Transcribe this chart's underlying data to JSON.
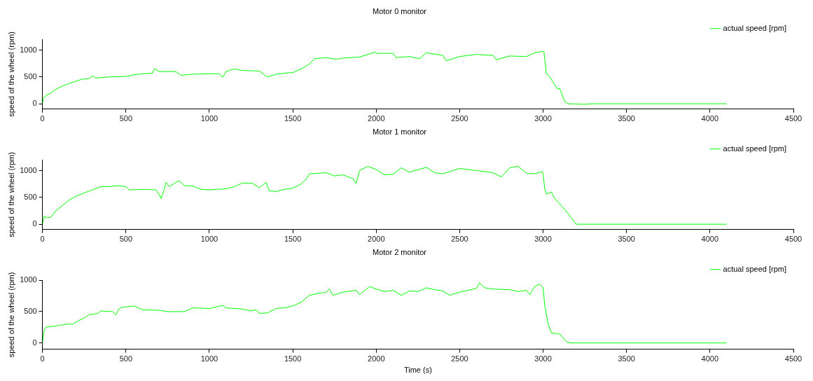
{
  "chart_data": [
    {
      "type": "line",
      "title": "Motor 0 monitor",
      "ylabel": "speed of the wheel (rpm)",
      "xlim": [
        0,
        4500
      ],
      "xticks": [
        0,
        500,
        1000,
        1500,
        2000,
        2500,
        3000,
        3500,
        4000,
        4500
      ],
      "ylim": [
        -100,
        1200
      ],
      "yticks": [
        0,
        500,
        1000
      ],
      "grid": false,
      "legend": "top right",
      "series": [
        {
          "name": "actual speed [rpm]",
          "color": "#00ff00",
          "x": [
            0,
            5,
            20,
            50,
            80,
            120,
            160,
            200,
            240,
            280,
            300,
            320,
            400,
            500,
            550,
            600,
            660,
            670,
            700,
            800,
            830,
            900,
            1000,
            1060,
            1080,
            1100,
            1150,
            1200,
            1300,
            1330,
            1350,
            1400,
            1480,
            1500,
            1550,
            1600,
            1630,
            1700,
            1760,
            1800,
            1900,
            1990,
            2000,
            2100,
            2120,
            2200,
            2260,
            2300,
            2400,
            2420,
            2500,
            2600,
            2700,
            2720,
            2800,
            2900,
            2950,
            3000,
            3005,
            3020,
            3040,
            3085,
            3100,
            3130,
            3150,
            3250,
            3300,
            4100
          ],
          "values": [
            0,
            100,
            150,
            200,
            270,
            330,
            380,
            420,
            460,
            470,
            520,
            480,
            500,
            510,
            540,
            560,
            570,
            650,
            600,
            600,
            530,
            550,
            560,
            560,
            490,
            600,
            650,
            620,
            610,
            540,
            500,
            550,
            580,
            580,
            650,
            740,
            840,
            860,
            830,
            850,
            870,
            960,
            940,
            940,
            860,
            880,
            840,
            950,
            900,
            800,
            880,
            920,
            900,
            820,
            890,
            880,
            950,
            980,
            970,
            560,
            500,
            280,
            280,
            40,
            0,
            -10,
            0,
            0
          ]
        }
      ]
    },
    {
      "type": "line",
      "title": "Motor 1 monitor",
      "ylabel": "speed of the wheel (rpm)",
      "xlim": [
        0,
        4500
      ],
      "xticks": [
        0,
        500,
        1000,
        1500,
        2000,
        2500,
        3000,
        3500,
        4000,
        4500
      ],
      "ylim": [
        -100,
        1200
      ],
      "yticks": [
        0,
        500,
        1000
      ],
      "grid": false,
      "legend": "top right",
      "series": [
        {
          "name": "actual speed [rpm]",
          "color": "#00ff00",
          "x": [
            0,
            10,
            30,
            50,
            80,
            120,
            160,
            200,
            240,
            280,
            350,
            400,
            450,
            500,
            520,
            600,
            680,
            700,
            710,
            730,
            740,
            760,
            800,
            820,
            850,
            900,
            950,
            1000,
            1100,
            1150,
            1200,
            1260,
            1300,
            1340,
            1360,
            1400,
            1450,
            1500,
            1550,
            1580,
            1600,
            1700,
            1750,
            1800,
            1860,
            1880,
            1900,
            1950,
            2000,
            2050,
            2100,
            2150,
            2200,
            2300,
            2350,
            2400,
            2500,
            2600,
            2700,
            2750,
            2800,
            2850,
            2900,
            2950,
            2995,
            3000,
            3010,
            3020,
            3050,
            3070,
            3100,
            3150,
            3190,
            3200,
            3240,
            4100
          ],
          "values": [
            0,
            150,
            120,
            130,
            250,
            350,
            450,
            520,
            570,
            620,
            700,
            700,
            720,
            700,
            640,
            650,
            640,
            550,
            480,
            650,
            780,
            700,
            780,
            810,
            720,
            710,
            650,
            640,
            660,
            700,
            770,
            760,
            680,
            780,
            620,
            610,
            650,
            670,
            750,
            840,
            940,
            960,
            900,
            920,
            850,
            760,
            1000,
            1080,
            1020,
            920,
            930,
            1050,
            970,
            1060,
            960,
            940,
            1040,
            1000,
            960,
            880,
            1050,
            1080,
            950,
            940,
            980,
            940,
            650,
            560,
            600,
            480,
            380,
            200,
            30,
            0,
            0,
            0
          ]
        }
      ]
    },
    {
      "type": "line",
      "title": "Motor 2 monitor",
      "xlabel": "Time (s)",
      "ylabel": "speed of the wheel (rpm)",
      "xlim": [
        0,
        4500
      ],
      "xticks": [
        0,
        500,
        1000,
        1500,
        2000,
        2500,
        3000,
        3500,
        4000,
        4500
      ],
      "ylim": [
        -100,
        1000
      ],
      "yticks": [
        0,
        500,
        1000
      ],
      "grid": false,
      "legend": "top right",
      "series": [
        {
          "name": "actual speed [rpm]",
          "color": "#00ff00",
          "x": [
            0,
            10,
            20,
            50,
            100,
            150,
            180,
            220,
            250,
            280,
            330,
            350,
            420,
            440,
            460,
            480,
            550,
            600,
            700,
            750,
            850,
            900,
            1000,
            1080,
            1100,
            1200,
            1250,
            1280,
            1300,
            1350,
            1400,
            1450,
            1500,
            1550,
            1600,
            1650,
            1700,
            1720,
            1740,
            1800,
            1880,
            1900,
            1960,
            2000,
            2050,
            2100,
            2150,
            2200,
            2250,
            2300,
            2350,
            2400,
            2440,
            2500,
            2600,
            2620,
            2650,
            2700,
            2800,
            2850,
            2900,
            2920,
            2950,
            2980,
            3000,
            3010,
            3030,
            3050,
            3080,
            3100,
            3140,
            3160,
            4100
          ],
          "values": [
            0,
            200,
            250,
            260,
            280,
            300,
            300,
            360,
            400,
            450,
            470,
            510,
            500,
            450,
            550,
            570,
            590,
            530,
            520,
            500,
            500,
            560,
            550,
            600,
            560,
            540,
            510,
            530,
            470,
            480,
            550,
            560,
            590,
            650,
            760,
            790,
            810,
            860,
            760,
            810,
            840,
            770,
            900,
            860,
            820,
            840,
            760,
            830,
            820,
            880,
            850,
            830,
            760,
            810,
            870,
            960,
            880,
            860,
            850,
            820,
            840,
            770,
            900,
            940,
            880,
            600,
            300,
            160,
            150,
            140,
            20,
            0,
            0
          ]
        }
      ]
    }
  ]
}
